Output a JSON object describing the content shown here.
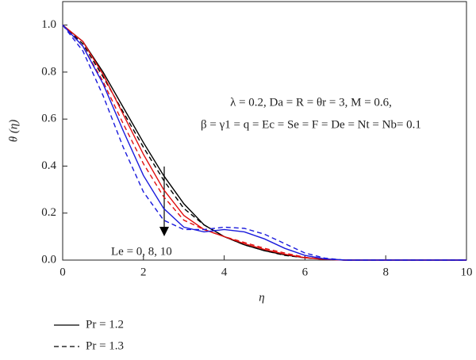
{
  "chart_data": {
    "type": "line",
    "xlabel": "η",
    "ylabel": "θ (η)",
    "annotations": [
      "λ = 0.2, Da = R = θr = 3, M = 0.6,",
      "β = γ1 = q = Ec = Se = F = De = Nt = Nb= 0.1",
      "Le = 0, 8, 10"
    ],
    "x": [
      0,
      0.5,
      1,
      1.5,
      2,
      2.5,
      3,
      3.5,
      4,
      4.5,
      5,
      5.5,
      6,
      6.5,
      7,
      7.5,
      8,
      8.5,
      9,
      9.5,
      10
    ],
    "series": [
      {
        "color": "#000000",
        "dash": "solid",
        "values": [
          1.0,
          0.93,
          0.8,
          0.65,
          0.5,
          0.36,
          0.24,
          0.15,
          0.1,
          0.065,
          0.04,
          0.022,
          0.01,
          0.004,
          0,
          0,
          0,
          0,
          0,
          0,
          0
        ]
      },
      {
        "color": "#000000",
        "dash": "dashed",
        "values": [
          1.0,
          0.92,
          0.78,
          0.63,
          0.48,
          0.34,
          0.22,
          0.15,
          0.1,
          0.065,
          0.04,
          0.02,
          0.01,
          0.003,
          0,
          0,
          0,
          0,
          0,
          0,
          0
        ]
      },
      {
        "color": "#e01010",
        "dash": "solid",
        "values": [
          1.0,
          0.93,
          0.79,
          0.62,
          0.45,
          0.3,
          0.19,
          0.13,
          0.1,
          0.07,
          0.045,
          0.025,
          0.01,
          0.003,
          0,
          0,
          0,
          0,
          0,
          0,
          0
        ]
      },
      {
        "color": "#e01010",
        "dash": "dashed",
        "values": [
          1.0,
          0.91,
          0.76,
          0.58,
          0.41,
          0.27,
          0.17,
          0.13,
          0.1,
          0.075,
          0.05,
          0.03,
          0.012,
          0.003,
          0,
          0,
          0,
          0,
          0,
          0,
          0
        ]
      },
      {
        "color": "#1a1adc",
        "dash": "solid",
        "values": [
          1.0,
          0.91,
          0.75,
          0.55,
          0.36,
          0.22,
          0.14,
          0.12,
          0.13,
          0.12,
          0.09,
          0.05,
          0.02,
          0.005,
          0,
          0,
          0,
          0,
          0,
          0,
          0
        ]
      },
      {
        "color": "#1a1adc",
        "dash": "dashed",
        "values": [
          1.0,
          0.89,
          0.7,
          0.48,
          0.29,
          0.17,
          0.13,
          0.13,
          0.14,
          0.135,
          0.11,
          0.07,
          0.03,
          0.008,
          0,
          0,
          0,
          0,
          0,
          0,
          0
        ]
      }
    ],
    "legend": [
      {
        "label": "Pr = 1.2",
        "dash": "solid"
      },
      {
        "label": "Pr = 1.3",
        "dash": "dashed"
      }
    ],
    "xlim": [
      0,
      10
    ],
    "xticks": [
      0,
      2,
      4,
      6,
      8,
      10
    ],
    "ylim": [
      0,
      1.1
    ],
    "yticks": [
      {
        "value": 0,
        "label": "0.0"
      },
      0.2,
      0.4,
      0.6,
      0.8,
      {
        "value": 1,
        "label": "1.0"
      }
    ]
  }
}
